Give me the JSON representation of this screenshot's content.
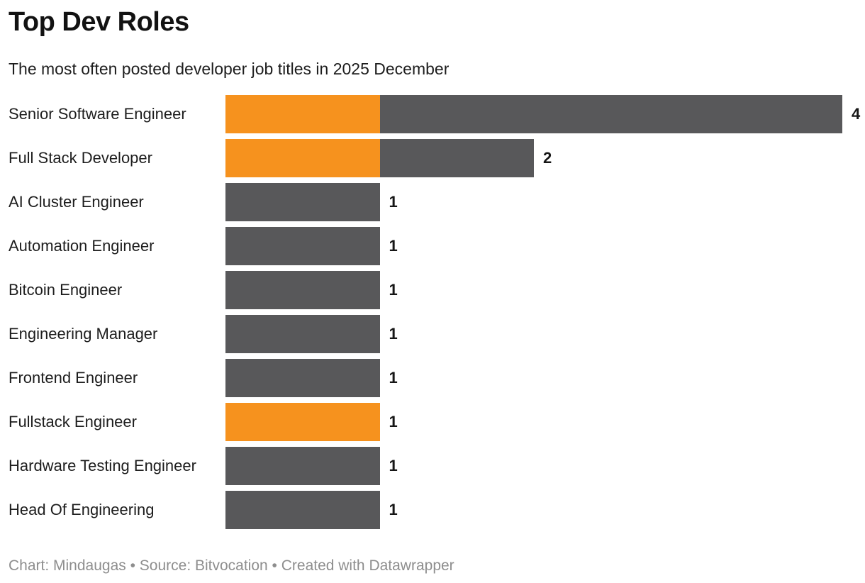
{
  "header": {
    "title": "Top Dev Roles",
    "subtitle": "The most often posted developer job titles in 2025 December"
  },
  "footer": {
    "credit": "Chart: Mindaugas • Source: Bitvocation • Created with Datawrapper"
  },
  "colors": {
    "highlight": "#f6921e",
    "default": "#58585a",
    "title_text": "#121212",
    "label_text": "#1d1d1d",
    "value_text": "#161616",
    "footer_text": "#8e8e8e"
  },
  "chart_data": {
    "type": "bar",
    "orientation": "horizontal",
    "title": "Top Dev Roles",
    "subtitle": "The most often posted developer job titles in 2025 December",
    "xlabel": "",
    "ylabel": "",
    "x_axis": {
      "min": 0,
      "max": 4,
      "ticks_visible": false,
      "gridlines": false
    },
    "legend": "none",
    "value_labels_shown": true,
    "categories": [
      "Senior Software Engineer",
      "Full Stack Developer",
      "AI Cluster Engineer",
      "Automation Engineer",
      "Bitcoin Engineer",
      "Engineering Manager",
      "Frontend Engineer",
      "Fullstack Engineer",
      "Hardware Testing Engineer",
      "Head Of Engineering"
    ],
    "values": [
      4,
      2,
      1,
      1,
      1,
      1,
      1,
      1,
      1,
      1
    ],
    "bars": [
      {
        "label": "Senior Software Engineer",
        "value": 4,
        "value_label": "4",
        "segments": [
          {
            "color": "highlight",
            "value": 1
          },
          {
            "color": "default",
            "value": 3
          }
        ]
      },
      {
        "label": "Full Stack Developer",
        "value": 2,
        "value_label": "2",
        "segments": [
          {
            "color": "highlight",
            "value": 1
          },
          {
            "color": "default",
            "value": 1
          }
        ]
      },
      {
        "label": "AI Cluster Engineer",
        "value": 1,
        "value_label": "1",
        "segments": [
          {
            "color": "default",
            "value": 1
          }
        ]
      },
      {
        "label": "Automation Engineer",
        "value": 1,
        "value_label": "1",
        "segments": [
          {
            "color": "default",
            "value": 1
          }
        ]
      },
      {
        "label": "Bitcoin Engineer",
        "value": 1,
        "value_label": "1",
        "segments": [
          {
            "color": "default",
            "value": 1
          }
        ]
      },
      {
        "label": "Engineering Manager",
        "value": 1,
        "value_label": "1",
        "segments": [
          {
            "color": "default",
            "value": 1
          }
        ]
      },
      {
        "label": "Frontend Engineer",
        "value": 1,
        "value_label": "1",
        "segments": [
          {
            "color": "default",
            "value": 1
          }
        ]
      },
      {
        "label": "Fullstack Engineer",
        "value": 1,
        "value_label": "1",
        "segments": [
          {
            "color": "highlight",
            "value": 1
          }
        ]
      },
      {
        "label": "Hardware Testing Engineer",
        "value": 1,
        "value_label": "1",
        "segments": [
          {
            "color": "default",
            "value": 1
          }
        ]
      },
      {
        "label": "Head Of Engineering",
        "value": 1,
        "value_label": "1",
        "segments": [
          {
            "color": "default",
            "value": 1
          }
        ]
      }
    ]
  }
}
